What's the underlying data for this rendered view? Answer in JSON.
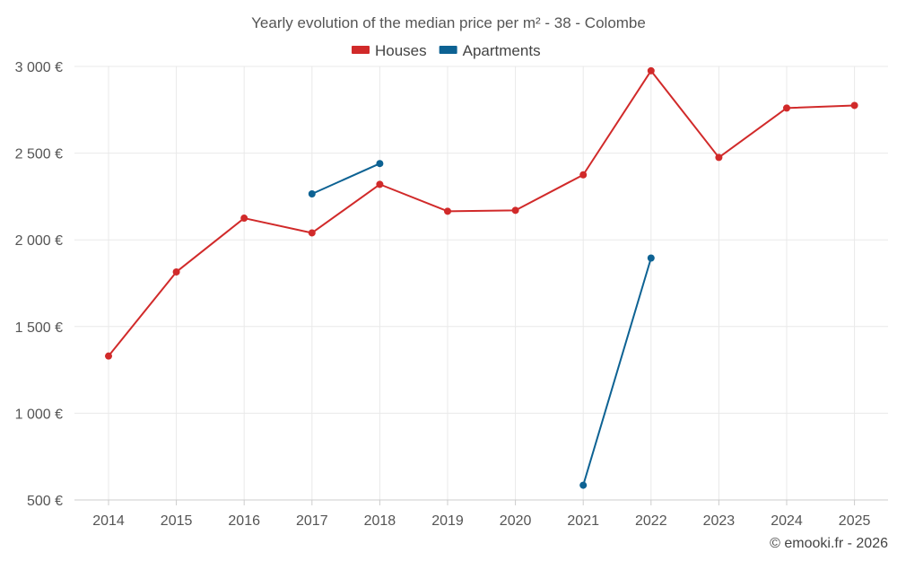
{
  "chart_data": {
    "type": "line",
    "title": "Yearly evolution of the median price per m² - 38 - Colombe",
    "categories": [
      "2014",
      "2015",
      "2016",
      "2017",
      "2018",
      "2019",
      "2020",
      "2021",
      "2022",
      "2023",
      "2024",
      "2025"
    ],
    "ylim": [
      500,
      3000
    ],
    "yticks": [
      500,
      1000,
      1500,
      2000,
      2500,
      3000
    ],
    "ytick_labels": [
      "500 €",
      "1 000 €",
      "1 500 €",
      "2 000 €",
      "2 500 €",
      "3 000 €"
    ],
    "grid": true,
    "legend_position": "top-center",
    "series": [
      {
        "name": "Houses",
        "color": "#d12a2a",
        "values": [
          1330,
          1815,
          2125,
          2040,
          2320,
          2165,
          2170,
          2375,
          2975,
          2475,
          2760,
          2775
        ]
      },
      {
        "name": "Apartments",
        "color": "#0d6293",
        "values": [
          null,
          null,
          null,
          2265,
          2440,
          null,
          null,
          585,
          1895,
          null,
          null,
          null
        ]
      }
    ],
    "credit": "© emooki.fr - 2026"
  }
}
